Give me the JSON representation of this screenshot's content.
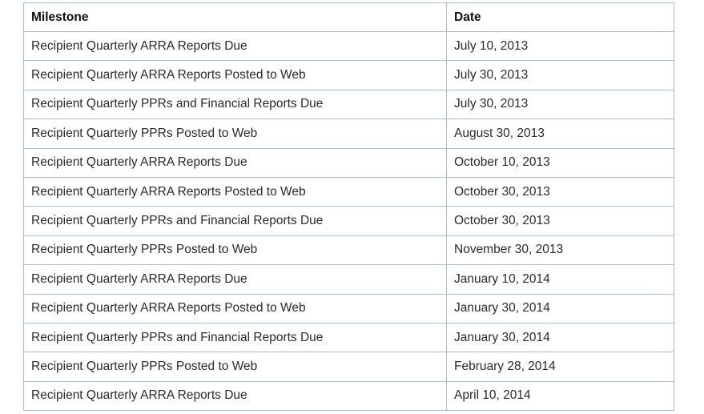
{
  "table": {
    "headers": [
      "Milestone",
      "Date"
    ],
    "rows": [
      [
        "Recipient Quarterly ARRA Reports Due",
        "July 10, 2013"
      ],
      [
        "Recipient Quarterly ARRA Reports Posted to Web",
        "July 30, 2013"
      ],
      [
        "Recipient Quarterly PPRs and Financial Reports Due",
        "July 30, 2013"
      ],
      [
        "Recipient Quarterly PPRs Posted to Web",
        "August 30, 2013"
      ],
      [
        "Recipient Quarterly ARRA Reports Due",
        "October 10, 2013"
      ],
      [
        "Recipient Quarterly ARRA Reports Posted to Web",
        "October 30, 2013"
      ],
      [
        "Recipient Quarterly PPRs and Financial Reports Due",
        "October 30, 2013"
      ],
      [
        "Recipient Quarterly PPRs Posted to Web",
        "November 30, 2013"
      ],
      [
        "Recipient Quarterly ARRA Reports Due",
        "January 10, 2014"
      ],
      [
        "Recipient Quarterly ARRA Reports Posted to Web",
        "January 30, 2014"
      ],
      [
        "Recipient Quarterly PPRs and Financial Reports Due",
        "January 30, 2014"
      ],
      [
        "Recipient Quarterly PPRs Posted to Web",
        "February 28, 2014"
      ],
      [
        "Recipient Quarterly ARRA Reports Due",
        "April 10, 2014"
      ]
    ]
  },
  "colors": {
    "border": "#a9bccb",
    "text": "#222222",
    "background": "#ffffff"
  }
}
